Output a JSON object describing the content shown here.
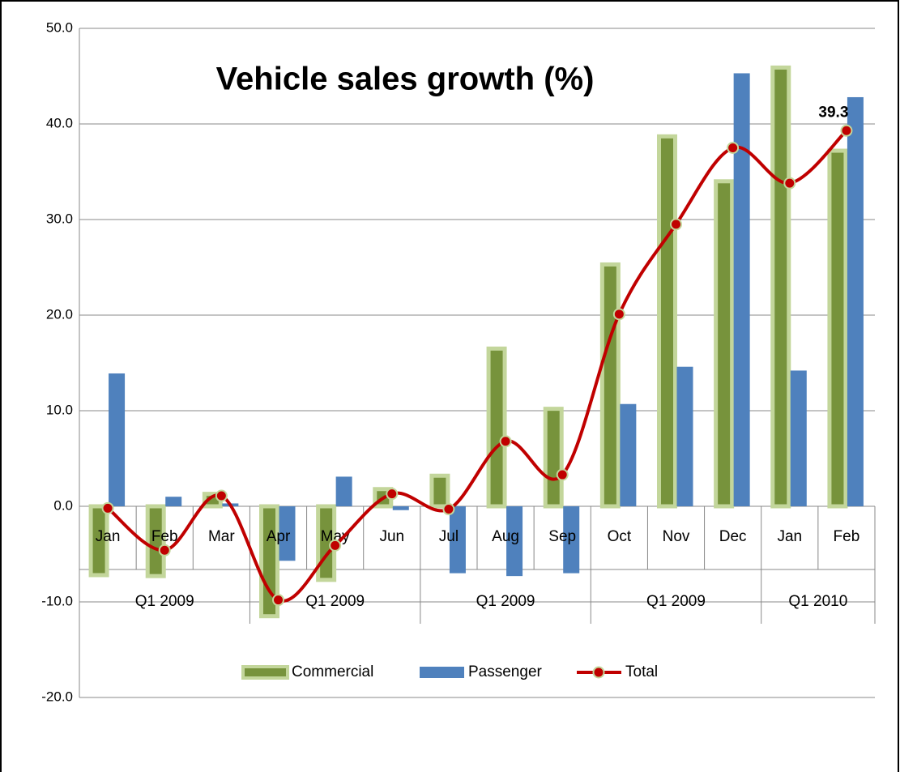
{
  "chart_data": {
    "type": "bar_line",
    "title": "Vehicle sales growth (%)",
    "categories": [
      "Jan",
      "Feb",
      "Mar",
      "Apr",
      "May",
      "Jun",
      "Jul",
      "Aug",
      "Sep",
      "Oct",
      "Nov",
      "Dec",
      "Jan",
      "Feb"
    ],
    "groups": [
      {
        "label": "Q1 2009",
        "span": 3
      },
      {
        "label": "Q1 2009",
        "span": 3
      },
      {
        "label": "Q1 2009",
        "span": 3
      },
      {
        "label": "Q1 2009",
        "span": 3
      },
      {
        "label": "Q1 2010",
        "span": 2
      }
    ],
    "series": [
      {
        "name": "Commercial",
        "type": "bar",
        "color": "#77933c",
        "edge": "#c3d69b",
        "values": [
          -7.2,
          -7.3,
          1.3,
          -11.5,
          -7.7,
          1.8,
          3.2,
          16.5,
          10.2,
          25.3,
          38.7,
          34.0,
          45.9,
          37.2
        ]
      },
      {
        "name": "Passenger",
        "type": "bar",
        "color": "#4f81bd",
        "values": [
          13.9,
          1.0,
          0.3,
          -5.7,
          3.1,
          -0.4,
          -7.0,
          -7.3,
          -7.0,
          10.7,
          14.6,
          45.3,
          14.2,
          42.8
        ]
      },
      {
        "name": "Total",
        "type": "line",
        "color": "#c00000",
        "edge": "#c3d69b",
        "values": [
          -0.2,
          -4.6,
          1.1,
          -9.8,
          -4.1,
          1.3,
          -0.3,
          6.8,
          3.3,
          20.1,
          29.5,
          37.5,
          33.8,
          39.3
        ],
        "value_labels": [
          null,
          null,
          null,
          null,
          null,
          null,
          null,
          null,
          null,
          null,
          null,
          null,
          null,
          "39.3"
        ]
      }
    ],
    "ylim": [
      -20,
      50
    ],
    "yticks": [
      {
        "value": -20,
        "label": "-20.0"
      },
      {
        "value": -10,
        "label": "-10.0"
      },
      {
        "value": 0,
        "label": "0.0"
      },
      {
        "value": 10,
        "label": "10.0"
      },
      {
        "value": 20,
        "label": "20.0"
      },
      {
        "value": 30,
        "label": "30.0"
      },
      {
        "value": 40,
        "label": "40.0"
      },
      {
        "value": 50,
        "label": "50.0"
      }
    ],
    "grid": true,
    "legend": "bottom"
  }
}
